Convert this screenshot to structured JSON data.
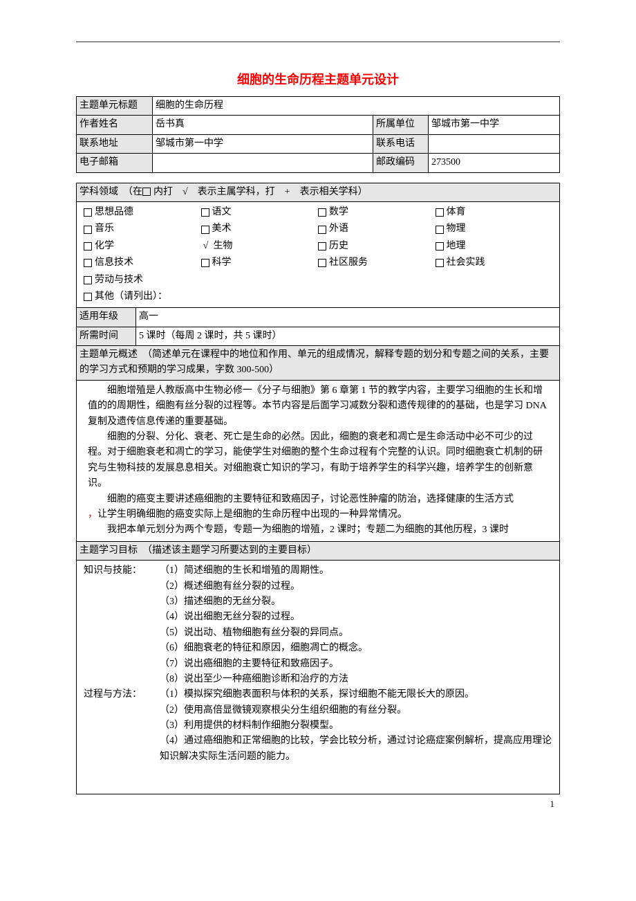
{
  "title": "细胞的生命历程主题单元设计",
  "meta_table": {
    "rows": [
      [
        "主题单元标题",
        "细胞的生命历程",
        "",
        ""
      ],
      [
        "作者姓名",
        "岳书真",
        "所属单位",
        "邹城市第一中学"
      ],
      [
        "联系地址",
        "邹城市第一中学",
        "联系电话",
        ""
      ],
      [
        "电子邮箱",
        "",
        "邮政编码",
        "273500"
      ]
    ]
  },
  "domain_header": "学科领域　（在　内打　√　表示主属学科，打　+　表示相关学科）",
  "subjects": [
    {
      "name": "思想品德",
      "mark": "box"
    },
    {
      "name": "语文",
      "mark": "box"
    },
    {
      "name": "数学",
      "mark": "box"
    },
    {
      "name": "体育",
      "mark": "box"
    },
    {
      "name": "音乐",
      "mark": "box"
    },
    {
      "name": "美术",
      "mark": "box"
    },
    {
      "name": "外语",
      "mark": "box"
    },
    {
      "name": "物理",
      "mark": "box"
    },
    {
      "name": "化学",
      "mark": "box"
    },
    {
      "name": "生物",
      "mark": "check"
    },
    {
      "name": "历史",
      "mark": "box"
    },
    {
      "name": "地理",
      "mark": "box"
    },
    {
      "name": "信息技术",
      "mark": "box"
    },
    {
      "name": "科学",
      "mark": "box"
    },
    {
      "name": "社区服务",
      "mark": "box"
    },
    {
      "name": "社会实践",
      "mark": "box"
    },
    {
      "name": "劳动与技术",
      "mark": "box"
    },
    {
      "name": "",
      "mark": "none"
    },
    {
      "name": "",
      "mark": "none"
    },
    {
      "name": "",
      "mark": "none"
    },
    {
      "name": "其他（请列出）：",
      "mark": "box"
    }
  ],
  "grade": {
    "label": "适用年级",
    "value": "高一"
  },
  "time": {
    "label": "所需时间",
    "value": "5 课时（每周 2 课时，共 5 课时）"
  },
  "overview": {
    "header": "主题单元概述　（简述单元在课程中的地位和作用、单元的组成情况，解释专题的划分和专题之间的关系，主要的学习方式和预期的学习成果，字数 300-500）",
    "paras": [
      "细胞增殖是人教版高中生物必修一《分子与细胞》第 6 章第 1 节的教学内容，主要学习细胞的生长和增值的的周期性，细胞有丝分裂的过程等。本节内容是后面学习减数分裂和遗传规律的的基础，也是学习 DNA 复制及遗传信息传递的重要基础。",
      "细胞的分裂、分化、衰老、死亡是生命的必然。因此，细胞的衰老和凋亡是生命活动中必不可少的过程。对于细胞衰老和凋亡的学习，能使学生对细胞的整个生命过程有个完整的认识。同时细胞衰亡机制的研究与生物科技的发展息息相关。对细胞衰亡知识的学习，有助于培养学生的科学兴趣，培养学生的创新意识。",
      "细胞的癌变主要讲述癌细胞的主要特征和致癌因子，讨论恶性肿瘤的防治，选择健康的生活方式让学生明确细胞的癌变实际上是细胞的生命历程中出现的一种异常情况。",
      "我把本单元划分为两个专题，专题一为细胞的增殖，2 课时；专题二为细胞的其他历程，3 课时"
    ],
    "red_prefix": "，"
  },
  "objectives": {
    "header": "主题学习目标　（描述该主题学习所要达到的主要目标）",
    "groups": [
      {
        "label": "知识与技能：",
        "items": [
          "（1）简述细胞的生长和增殖的周期性。",
          "（2）概述细胞有丝分裂的过程。",
          "（3）描述细胞的无丝分裂。",
          "（4）说出细胞无丝分裂的过程。",
          "（5）说出动、植物细胞有丝分裂的异同点。",
          "（6）细胞衰老的特征和原因，细胞凋亡的概念。",
          "（7）说出癌细胞的主要特征和致癌因子。",
          "（8）说出至少一种癌细胞诊断和治疗的方法"
        ]
      },
      {
        "label": "过程与方法：",
        "items": [
          "（1）模拟探究细胞表面积与体积的关系，探讨细胞不能无限长大的原因。",
          "（2）使用高倍显微镜观察根尖分生组织细胞的有丝分裂。",
          "（3）利用提供的材料制作细胞分裂模型。",
          "（4）通过癌细胞和正常细胞的比较，学会比较分析，通过讨论癌症案例解析，提高应用理论知识解决实际生活问题的能力。"
        ]
      }
    ]
  },
  "page_num": "1"
}
